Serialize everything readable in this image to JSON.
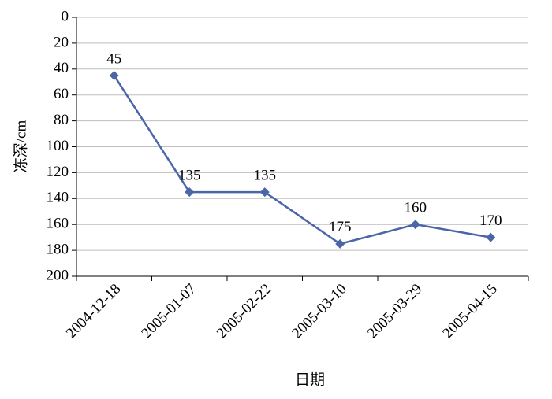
{
  "chart_data": {
    "type": "line",
    "x_label": "日期",
    "y_label": "冻深/cm",
    "categories": [
      "2004-12-18",
      "2005-01-07",
      "2005-02-22",
      "2005-03-10",
      "2005-03-29",
      "2005-04-15"
    ],
    "series": [
      {
        "name": "冻深",
        "color": "#4a66a8",
        "values": [
          45,
          135,
          135,
          175,
          160,
          170
        ]
      }
    ],
    "ylim": [
      0,
      200
    ],
    "yticks": [
      0,
      20,
      40,
      60,
      80,
      100,
      120,
      140,
      160,
      180,
      200
    ],
    "y_inverted": true,
    "grid": true,
    "marker": "diamond"
  }
}
